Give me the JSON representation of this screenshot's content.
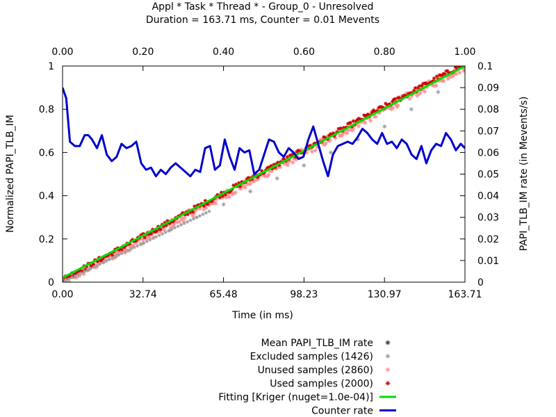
{
  "chart_data": {
    "type": "scatter",
    "title": "Appl * Task * Thread * - Group_0 - Unresolved",
    "subtitle": "Duration = 163.71 ms, Counter = 0.01 Mevents",
    "xlabel": "Time (in ms)",
    "ylabel": "Normalized PAPI_TLB_IM",
    "y2label": "PAPI_TLB_IM rate (in Mevents/s)",
    "xlim": [
      0,
      163.71
    ],
    "ylim": [
      0,
      1
    ],
    "x2lim": [
      0,
      1
    ],
    "y2lim": [
      0,
      0.1
    ],
    "x_ticks": [
      "0.00",
      "32.74",
      "65.48",
      "98.23",
      "130.97",
      "163.71"
    ],
    "x_tick_values": [
      0,
      32.74,
      65.48,
      98.23,
      130.97,
      163.71
    ],
    "x2_ticks": [
      "0.00",
      "0.20",
      "0.40",
      "0.60",
      "0.80",
      "1.00"
    ],
    "x2_tick_values": [
      0,
      0.2,
      0.4,
      0.6,
      0.8,
      1.0
    ],
    "y_ticks": [
      "0",
      "0.2",
      "0.4",
      "0.6",
      "0.8",
      "1"
    ],
    "y_tick_values": [
      0,
      0.2,
      0.4,
      0.6,
      0.8,
      1
    ],
    "y2_ticks": [
      "0",
      "0.01",
      "0.02",
      "0.03",
      "0.04",
      "0.05",
      "0.06",
      "0.07",
      "0.08",
      "0.09",
      "0.1"
    ],
    "y2_tick_values": [
      0,
      0.01,
      0.02,
      0.03,
      0.04,
      0.05,
      0.06,
      0.07,
      0.08,
      0.09,
      0.1
    ],
    "grid": false,
    "legend_position": "bottom",
    "series": [
      {
        "name": "Mean PAPI_TLB_IM rate",
        "kind": "points",
        "color": "#333333",
        "x": [],
        "y": []
      },
      {
        "name": "Excluded samples (1426)",
        "kind": "points",
        "color": "#a0a0a0",
        "x": [
          0,
          10.9,
          21.8,
          32.7,
          43.6,
          54.6,
          65.5,
          76.4,
          87.3,
          98.2,
          109.1,
          120.1,
          131.0,
          141.9,
          152.8,
          163.7
        ],
        "y": [
          0.0,
          0.06,
          0.12,
          0.18,
          0.24,
          0.3,
          0.36,
          0.42,
          0.48,
          0.54,
          0.6,
          0.66,
          0.72,
          0.8,
          0.88,
          0.98
        ]
      },
      {
        "name": "Unused samples (2860)",
        "kind": "points",
        "color": "#ff9090",
        "x": [
          0,
          163.71
        ],
        "y": [
          0.0,
          1.0
        ]
      },
      {
        "name": "Used samples (2000)",
        "kind": "points",
        "color": "#cc0000",
        "x": [
          0,
          163.71
        ],
        "y": [
          0.0,
          1.0
        ]
      },
      {
        "name": "Fitting [Kriger (nuget=1.0e-04)]",
        "kind": "line",
        "color": "#00dd00",
        "x": [
          0,
          163.71
        ],
        "y": [
          0.02,
          1.0
        ]
      },
      {
        "name": "Counter rate",
        "kind": "line",
        "axis": "y2",
        "color": "#0000cc",
        "x": [
          0,
          1.5,
          3,
          5,
          7,
          9,
          10.5,
          12,
          14,
          16,
          18,
          20,
          22,
          24,
          26,
          28,
          30,
          32,
          34,
          36,
          38,
          40,
          42,
          44,
          46,
          48,
          50,
          52,
          54,
          56,
          58,
          60,
          62,
          64,
          66,
          68,
          70,
          72,
          74,
          76,
          78,
          80,
          82,
          84,
          86,
          88,
          90,
          92,
          94,
          96,
          98,
          100,
          102,
          104,
          106,
          108,
          110,
          112,
          114,
          116,
          118,
          120,
          122,
          124,
          126,
          128,
          130,
          132,
          134,
          136,
          138,
          140,
          142,
          144,
          146,
          148,
          150,
          152,
          154,
          156,
          158,
          160,
          162,
          163.71
        ],
        "y": [
          0.09,
          0.085,
          0.065,
          0.063,
          0.063,
          0.068,
          0.068,
          0.066,
          0.062,
          0.068,
          0.059,
          0.056,
          0.058,
          0.064,
          0.062,
          0.063,
          0.065,
          0.055,
          0.052,
          0.053,
          0.049,
          0.052,
          0.05,
          0.053,
          0.055,
          0.053,
          0.051,
          0.049,
          0.052,
          0.051,
          0.062,
          0.063,
          0.052,
          0.054,
          0.066,
          0.058,
          0.052,
          0.062,
          0.06,
          0.061,
          0.05,
          0.052,
          0.059,
          0.066,
          0.065,
          0.06,
          0.058,
          0.062,
          0.06,
          0.057,
          0.058,
          0.066,
          0.072,
          0.064,
          0.056,
          0.049,
          0.059,
          0.063,
          0.064,
          0.065,
          0.064,
          0.067,
          0.071,
          0.069,
          0.066,
          0.064,
          0.069,
          0.064,
          0.065,
          0.062,
          0.066,
          0.064,
          0.059,
          0.057,
          0.063,
          0.055,
          0.061,
          0.064,
          0.063,
          0.069,
          0.066,
          0.061,
          0.064,
          0.062
        ]
      }
    ]
  }
}
